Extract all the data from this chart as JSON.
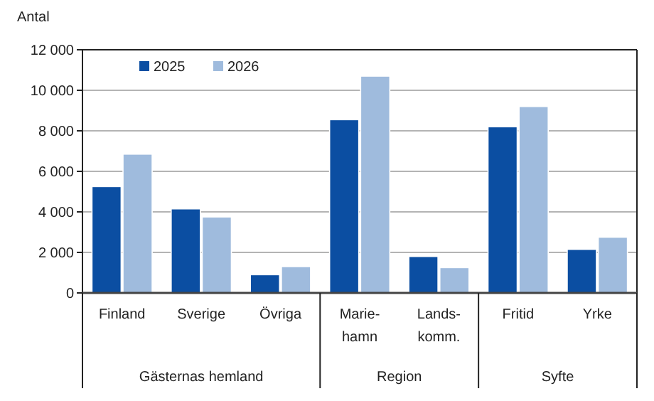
{
  "chart_data": {
    "type": "bar",
    "ylabel": "Antal",
    "categories": [
      "Finland",
      "Sverige",
      "Övriga",
      "Marie-\nhamn",
      "Lands-\nkomm.",
      "Fritid",
      "Yrke"
    ],
    "series": [
      {
        "name": "2025",
        "color": "#0b4ea2",
        "values": [
          5250,
          4150,
          900,
          8550,
          1800,
          8200,
          2150
        ]
      },
      {
        "name": "2026",
        "color": "#9fbbdd",
        "values": [
          6850,
          3750,
          1300,
          10700,
          1250,
          9200,
          2750
        ]
      }
    ],
    "ylim": [
      0,
      12000
    ],
    "yticks": [
      0,
      {
        "value": 2000,
        "label": "2 000"
      },
      {
        "value": 4000,
        "label": "4 000"
      },
      {
        "value": 6000,
        "label": "6 000"
      },
      {
        "value": 8000,
        "label": "8 000"
      },
      {
        "value": 10000,
        "label": "10 000"
      },
      {
        "value": 12000,
        "label": "12 000"
      }
    ],
    "grid": "y",
    "legend": "top",
    "annotations": [
      "Gästernas hemland",
      "Region",
      "Syfte"
    ]
  }
}
